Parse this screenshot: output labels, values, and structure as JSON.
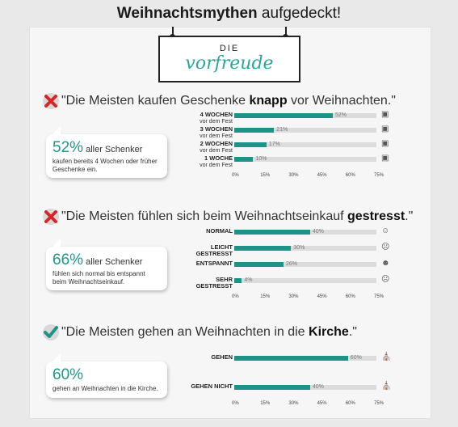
{
  "title": {
    "bold": "Weihnachtsmythen",
    "light": " aufgedeckt!"
  },
  "sign": {
    "die": "DIE",
    "script": "vorfreude"
  },
  "accent": "#1d9387",
  "sections": [
    {
      "status": "false",
      "headline_pre": "\"Die Meisten kaufen Geschenke ",
      "headline_bold": "knapp",
      "headline_post": " vor Weihnachten.\"",
      "bubble_big": "52%",
      "bubble_small": " aller Schenker",
      "bubble_desc": "kaufen bereits 4 Wochen oder früher Geschenke ein.",
      "icon": "gift-icon",
      "rows": [
        {
          "label": "4 WOCHEN",
          "sub": "vor dem Fest",
          "value": 52,
          "pct": "52%"
        },
        {
          "label": "3 WOCHEN",
          "sub": "vor dem Fest",
          "value": 21,
          "pct": "21%"
        },
        {
          "label": "2 WOCHEN",
          "sub": "vor dem Fest",
          "value": 17,
          "pct": "17%"
        },
        {
          "label": "1 WOCHE",
          "sub": "vor dem Fest",
          "value": 10,
          "pct": "10%"
        }
      ]
    },
    {
      "status": "false",
      "headline_pre": "\"Die Meisten fühlen sich beim Weihnachtseinkauf ",
      "headline_bold": "gestresst",
      "headline_post": ".\"",
      "bubble_big": "66%",
      "bubble_small": " aller Schenker",
      "bubble_desc": "fühlen sich normal bis entspannt beim Weihnachtseinkauf.",
      "icon": "face-icon",
      "rows": [
        {
          "label": "NORMAL",
          "sub": "",
          "value": 40,
          "pct": "40%",
          "face": "☺"
        },
        {
          "label": "LEICHT GESTRESST",
          "sub": "",
          "value": 30,
          "pct": "30%",
          "face": "☹"
        },
        {
          "label": "ENTSPANNT",
          "sub": "",
          "value": 26,
          "pct": "26%",
          "face": "☻"
        },
        {
          "label": "SEHR GESTRESST",
          "sub": "",
          "value": 4,
          "pct": "4%",
          "face": "☹"
        }
      ]
    },
    {
      "status": "true",
      "headline_pre": "\"Die Meisten gehen an Weihnachten in die ",
      "headline_bold": "Kirche",
      "headline_post": ".\"",
      "bubble_big": "60%",
      "bubble_small": "",
      "bubble_desc": "gehen an Weihnachten in die Kirche.",
      "icon": "church-icon",
      "rows": [
        {
          "label": "GEHEN",
          "sub": "",
          "value": 60,
          "pct": "60%"
        },
        {
          "label": "GEHEN NICHT",
          "sub": "",
          "value": 40,
          "pct": "40%"
        }
      ]
    }
  ],
  "axis_ticks": [
    "0%",
    "15%",
    "30%",
    "45%",
    "60%",
    "75%"
  ],
  "chart_data": [
    {
      "type": "bar",
      "categories": [
        "4 WOCHEN vor dem Fest",
        "3 WOCHEN vor dem Fest",
        "2 WOCHEN vor dem Fest",
        "1 WOCHE vor dem Fest"
      ],
      "values": [
        52,
        21,
        17,
        10
      ],
      "xlim": [
        0,
        75
      ]
    },
    {
      "type": "bar",
      "categories": [
        "NORMAL",
        "LEICHT GESTRESST",
        "ENTSPANNT",
        "SEHR GESTRESST"
      ],
      "values": [
        40,
        30,
        26,
        4
      ],
      "xlim": [
        0,
        75
      ]
    },
    {
      "type": "bar",
      "categories": [
        "GEHEN",
        "GEHEN NICHT"
      ],
      "values": [
        60,
        40
      ],
      "xlim": [
        0,
        75
      ]
    }
  ]
}
